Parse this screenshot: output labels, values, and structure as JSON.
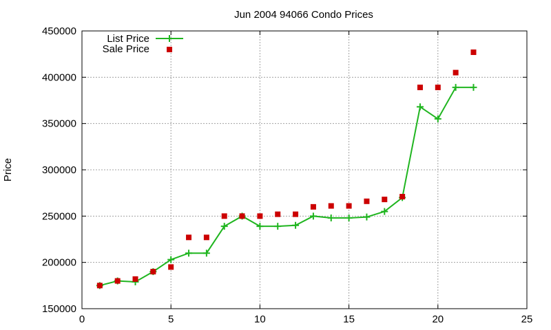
{
  "chart_data": {
    "type": "line",
    "title": "Jun 2004 94066 Condo Prices",
    "xlabel": "",
    "ylabel": "Price",
    "xlim": [
      0,
      25
    ],
    "ylim": [
      150000,
      450000
    ],
    "x_ticks": [
      0,
      5,
      10,
      15,
      20,
      25
    ],
    "y_ticks": [
      150000,
      200000,
      250000,
      300000,
      350000,
      400000,
      450000
    ],
    "grid": true,
    "legend_position": "top-left",
    "series": [
      {
        "name": "List Price",
        "style": "line+cross",
        "color": "#1fb51f",
        "x": [
          1,
          2,
          3,
          4,
          5,
          6,
          7,
          8,
          9,
          10,
          11,
          12,
          13,
          14,
          15,
          16,
          17,
          18,
          19,
          20,
          21,
          22
        ],
        "values": [
          175000,
          180000,
          179000,
          190000,
          203000,
          210000,
          210000,
          239000,
          250000,
          239000,
          239000,
          240000,
          250000,
          248000,
          248000,
          249000,
          255000,
          270000,
          368000,
          355000,
          389000,
          389000
        ]
      },
      {
        "name": "Sale Price",
        "style": "square",
        "color": "#cc0000",
        "x": [
          1,
          2,
          3,
          4,
          5,
          6,
          7,
          8,
          9,
          10,
          11,
          12,
          13,
          14,
          15,
          16,
          17,
          18,
          19,
          20,
          21,
          22
        ],
        "values": [
          175000,
          180000,
          182000,
          190000,
          195000,
          227000,
          227000,
          250000,
          250000,
          250000,
          252000,
          252000,
          260000,
          261000,
          261000,
          266000,
          268000,
          271000,
          389000,
          389000,
          405000,
          427000
        ]
      }
    ]
  }
}
